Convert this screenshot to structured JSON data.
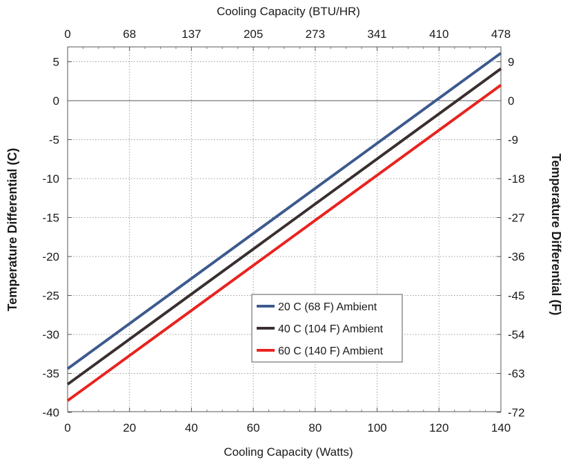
{
  "chart_data": {
    "type": "line",
    "xlabel_bottom": "Cooling Capacity (Watts)",
    "xlabel_top": "Cooling Capacity (BTU/HR)",
    "ylabel_left": "Temperature Differential (C)",
    "ylabel_right": "Temperature Differential (F)",
    "xlim": [
      0,
      140
    ],
    "ylim": [
      -40,
      7
    ],
    "grid": true,
    "legend_position": "center-bottom",
    "x_ticks_bottom": [
      0,
      20,
      40,
      60,
      80,
      100,
      120,
      140
    ],
    "x_ticks_bottom_labels": [
      "0",
      "20",
      "40",
      "60",
      "80",
      "100",
      "120",
      "140"
    ],
    "x_ticks_top_labels": [
      "0",
      "68",
      "137",
      "205",
      "273",
      "341",
      "410",
      "478"
    ],
    "y_ticks_left": [
      5,
      0,
      -5,
      -10,
      -15,
      -20,
      -25,
      -30,
      -35,
      -40
    ],
    "y_ticks_left_labels": [
      "5",
      "0",
      "-5",
      "-10",
      "-15",
      "-20",
      "-25",
      "-30",
      "-35",
      "-40"
    ],
    "y_ticks_right_labels": [
      "9",
      "0",
      "-9",
      "-18",
      "-27",
      "-36",
      "-45",
      "-54",
      "-63",
      "-72"
    ],
    "series": [
      {
        "name": "20 C (68 F) Ambient",
        "color": "#3d5a8e",
        "x": [
          0,
          140
        ],
        "y": [
          -34.4,
          6.1
        ]
      },
      {
        "name": "40 C (104 F) Ambient",
        "color": "#3a2f2f",
        "x": [
          0,
          140
        ],
        "y": [
          -36.4,
          4.1
        ]
      },
      {
        "name": "60 C (140 F) Ambient",
        "color": "#e8231f",
        "x": [
          0,
          140
        ],
        "y": [
          -38.5,
          2.0
        ]
      }
    ]
  }
}
